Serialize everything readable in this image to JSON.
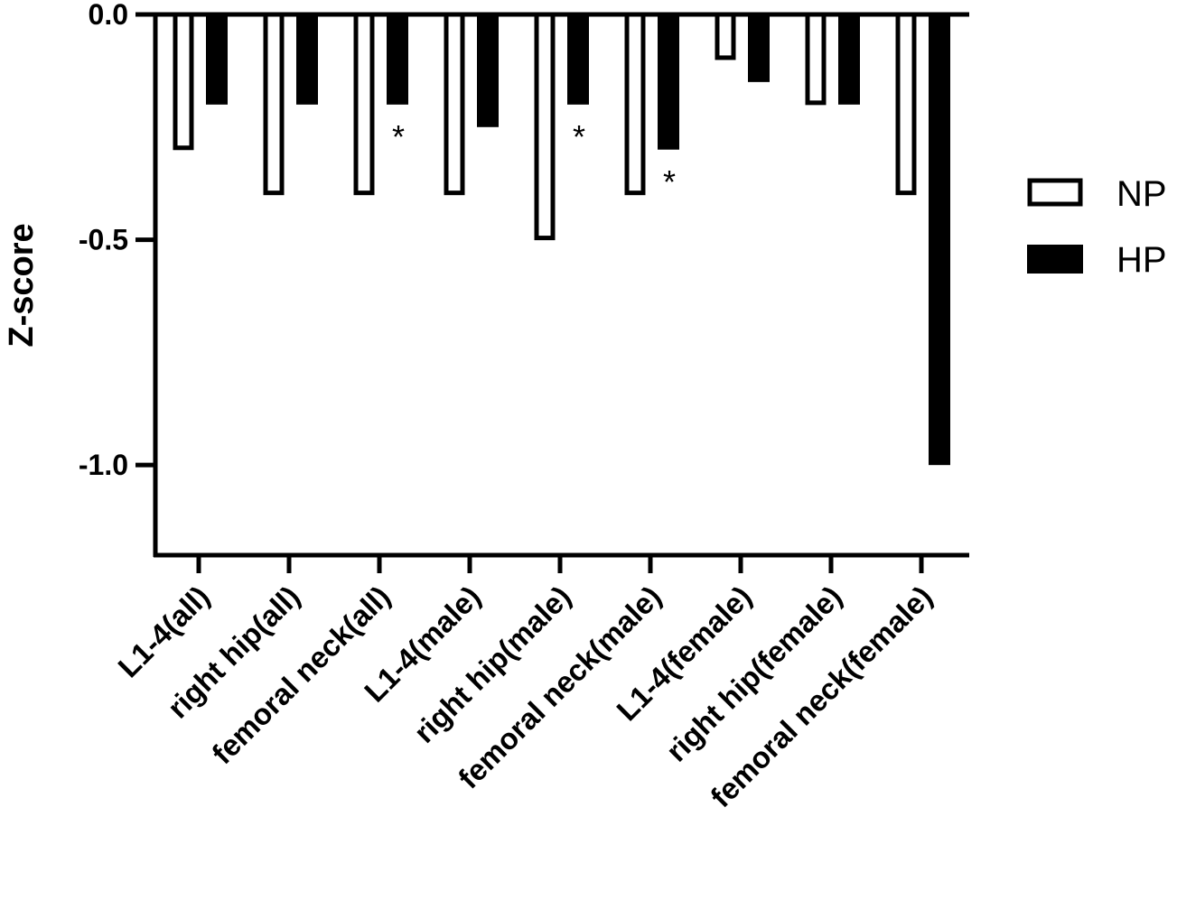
{
  "chart_data": {
    "type": "bar",
    "title": "",
    "xlabel": "",
    "ylabel": "Z-score",
    "ylim": [
      -1.2,
      0.0
    ],
    "yticks": [
      0.0,
      -0.5,
      -1.0
    ],
    "ytick_labels": [
      "0.0",
      "-0.5",
      "-1.0"
    ],
    "grid": false,
    "legend_position": "right",
    "categories": [
      "L1-4(all)",
      "right hip(all)",
      "femoral neck(all)",
      "L1-4(male)",
      "right hip(male)",
      "femoral neck(male)",
      "L1-4(female)",
      "right hip(female)",
      "femoral neck(female)"
    ],
    "series": [
      {
        "name": "NP",
        "style": "hollow",
        "color": "#000000",
        "values": [
          -0.3,
          -0.4,
          -0.4,
          -0.4,
          -0.5,
          -0.4,
          -0.1,
          -0.2,
          -0.4
        ]
      },
      {
        "name": "HP",
        "style": "filled",
        "color": "#000000",
        "values": [
          -0.2,
          -0.2,
          -0.2,
          -0.25,
          -0.2,
          -0.3,
          -0.15,
          -0.2,
          -1.0
        ]
      }
    ],
    "annotations": [
      {
        "text": "*",
        "series": "HP",
        "category_index": 2
      },
      {
        "text": "*",
        "series": "HP",
        "category_index": 4
      },
      {
        "text": "*",
        "series": "HP",
        "category_index": 5
      }
    ]
  }
}
